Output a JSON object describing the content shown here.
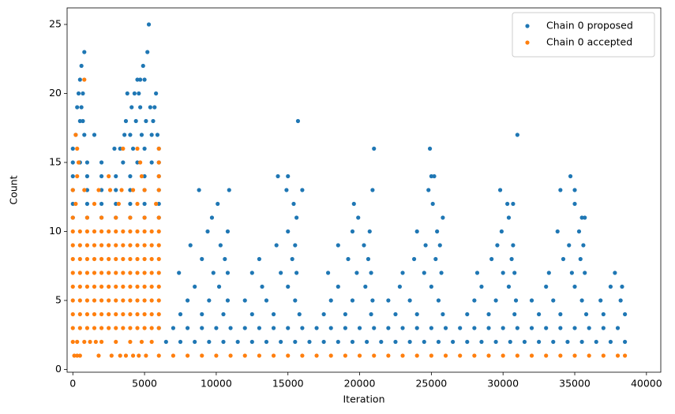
{
  "chart_data": {
    "type": "scatter",
    "xlabel": "Iteration",
    "ylabel": "Count",
    "xlim": [
      -400,
      41000
    ],
    "xticks": [
      0,
      5000,
      10000,
      15000,
      20000,
      25000,
      30000,
      35000,
      40000
    ],
    "ylim": [
      -0.2,
      26.2
    ],
    "yticks": [
      0,
      5,
      10,
      15,
      20,
      25
    ],
    "grid": false,
    "legend": "upper right",
    "series": [
      {
        "name": "Chain 0 proposed",
        "color": "#1f77b4",
        "x": [
          0,
          1000,
          2000,
          3000,
          4000,
          5000,
          6000,
          0,
          1000,
          2000,
          3000,
          4000,
          5000,
          6000,
          0,
          1000,
          2000,
          3000,
          4000,
          5000,
          6000,
          0,
          1000,
          2000,
          3000,
          4000,
          5000,
          6000,
          0,
          500,
          1000,
          2000,
          3500,
          4500,
          5500,
          6000,
          0,
          2900,
          3300,
          4200,
          5000,
          6000,
          200,
          800,
          1500,
          3600,
          4000,
          4800,
          5500,
          5900,
          500,
          700,
          3700,
          4400,
          5100,
          5600,
          300,
          600,
          4100,
          4700,
          5400,
          5700,
          400,
          700,
          3800,
          4300,
          4600,
          5800,
          500,
          4500,
          4700,
          5000,
          600,
          4900,
          800,
          5200,
          5300,
          6500,
          7500,
          8500,
          9500,
          10500,
          11500,
          12500,
          13500,
          14500,
          15500,
          16500,
          17500,
          18500,
          19500,
          20500,
          21500,
          22500,
          23500,
          24500,
          25500,
          26500,
          27500,
          28500,
          29500,
          30500,
          31500,
          32500,
          33500,
          34500,
          35500,
          36500,
          37500,
          38500,
          6000,
          7000,
          8000,
          9000,
          10000,
          11000,
          12000,
          13000,
          14000,
          15000,
          16000,
          17000,
          18000,
          19000,
          20000,
          21000,
          22000,
          23000,
          24000,
          25000,
          26000,
          27000,
          28000,
          29000,
          30000,
          31000,
          32000,
          33000,
          34000,
          35000,
          36000,
          37000,
          38000,
          7500,
          9000,
          10500,
          12500,
          14000,
          15800,
          17500,
          19000,
          20800,
          22500,
          24000,
          25800,
          27500,
          29000,
          30800,
          32500,
          34000,
          35800,
          37000,
          38500,
          8000,
          9500,
          10800,
          12000,
          13500,
          15500,
          18000,
          19500,
          20900,
          22000,
          23500,
          25500,
          28000,
          29500,
          30900,
          32000,
          33500,
          35500,
          36800,
          38200,
          8500,
          10200,
          13200,
          15000,
          18500,
          20400,
          22800,
          25000,
          28500,
          30400,
          33000,
          35000,
          37500,
          38300,
          7400,
          9800,
          10800,
          12500,
          14500,
          15600,
          17800,
          19800,
          20800,
          23000,
          24500,
          25700,
          28200,
          30000,
          30800,
          33200,
          34800,
          35700,
          37800,
          9000,
          10600,
          13000,
          15300,
          19200,
          20600,
          23800,
          25300,
          29200,
          30600,
          34200,
          35400,
          8200,
          10300,
          14200,
          15500,
          18500,
          20300,
          24600,
          25600,
          29600,
          30700,
          34600,
          35600,
          9400,
          10800,
          15000,
          19500,
          20700,
          24000,
          25400,
          29900,
          33800,
          35300,
          9700,
          15600,
          19900,
          25800,
          30400,
          35500,
          35700,
          10100,
          15400,
          19600,
          25100,
          30300,
          30700,
          35000,
          8800,
          10900,
          14900,
          16000,
          20900,
          24800,
          29800,
          34000,
          35000,
          14300,
          15000,
          25000,
          25200,
          34700,
          21000,
          24900,
          31000,
          15700
        ],
        "values": [
          11,
          11,
          11,
          11,
          11,
          11,
          11,
          12,
          12,
          12,
          12,
          12,
          12,
          12,
          13,
          13,
          13,
          13,
          13,
          13,
          13,
          14,
          14,
          14,
          14,
          14,
          14,
          14,
          15,
          15,
          15,
          15,
          15,
          15,
          15,
          15,
          16,
          16,
          16,
          16,
          16,
          16,
          17,
          17,
          17,
          17,
          17,
          17,
          17,
          17,
          18,
          18,
          18,
          18,
          18,
          18,
          19,
          19,
          19,
          19,
          19,
          19,
          20,
          20,
          20,
          20,
          20,
          20,
          21,
          21,
          21,
          21,
          22,
          22,
          23,
          23,
          25,
          2,
          2,
          2,
          2,
          2,
          2,
          2,
          2,
          2,
          2,
          2,
          2,
          2,
          2,
          2,
          2,
          2,
          2,
          2,
          2,
          2,
          2,
          2,
          2,
          2,
          2,
          2,
          2,
          2,
          2,
          2,
          2,
          2,
          3,
          3,
          3,
          3,
          3,
          3,
          3,
          3,
          3,
          3,
          3,
          3,
          3,
          3,
          3,
          3,
          3,
          3,
          3,
          3,
          3,
          3,
          3,
          3,
          3,
          3,
          3,
          3,
          3,
          3,
          3,
          3,
          3,
          4,
          4,
          4,
          4,
          4,
          4,
          4,
          4,
          4,
          4,
          4,
          4,
          4,
          4,
          4,
          4,
          4,
          4,
          4,
          4,
          5,
          5,
          5,
          5,
          5,
          5,
          5,
          5,
          5,
          5,
          5,
          5,
          5,
          5,
          5,
          5,
          5,
          5,
          5,
          5,
          6,
          6,
          6,
          6,
          6,
          6,
          6,
          6,
          6,
          6,
          6,
          6,
          6,
          6,
          7,
          7,
          7,
          7,
          7,
          7,
          7,
          7,
          7,
          7,
          7,
          7,
          7,
          7,
          7,
          7,
          7,
          7,
          7,
          8,
          8,
          8,
          8,
          8,
          8,
          8,
          8,
          8,
          8,
          8,
          8,
          9,
          9,
          9,
          9,
          9,
          9,
          9,
          9,
          9,
          9,
          9,
          9,
          10,
          10,
          10,
          10,
          10,
          10,
          10,
          10,
          10,
          10,
          11,
          11,
          11,
          11,
          11,
          11,
          11,
          12,
          12,
          12,
          12,
          12,
          12,
          12,
          13,
          13,
          13,
          13,
          13,
          13,
          13,
          13,
          13,
          14,
          14,
          14,
          14,
          14,
          16,
          16,
          17,
          18
        ]
      },
      {
        "name": "Chain 0 accepted",
        "color": "#ff7f0e",
        "x": [
          100,
          300,
          500,
          1800,
          2700,
          3300,
          3700,
          4200,
          4600,
          5100,
          6000,
          7000,
          8000,
          9000,
          10000,
          11000,
          12000,
          13000,
          14000,
          15000,
          16000,
          17000,
          18000,
          19000,
          20000,
          21000,
          22000,
          23000,
          24000,
          25000,
          26000,
          27000,
          28000,
          29000,
          30000,
          31000,
          32000,
          33000,
          34000,
          35000,
          36000,
          37000,
          38000,
          38500,
          0,
          300,
          800,
          1200,
          1600,
          2000,
          3000,
          4000,
          4800,
          5500,
          0,
          500,
          1000,
          1500,
          2000,
          2500,
          3000,
          3500,
          4000,
          4500,
          5000,
          5500,
          6000,
          0,
          500,
          1000,
          1500,
          2000,
          2500,
          3000,
          3500,
          4000,
          4500,
          5000,
          5500,
          6000,
          0,
          500,
          1000,
          1500,
          2000,
          2500,
          3000,
          3500,
          4000,
          4500,
          5000,
          5500,
          6000,
          0,
          500,
          1000,
          1500,
          2000,
          2500,
          3000,
          3500,
          4000,
          4500,
          5000,
          5500,
          6000,
          0,
          500,
          1000,
          1500,
          2000,
          2500,
          3000,
          3500,
          4000,
          4500,
          5000,
          5500,
          6000,
          0,
          500,
          1000,
          1500,
          2000,
          2500,
          3000,
          3500,
          4000,
          4500,
          5000,
          5500,
          6000,
          0,
          500,
          1000,
          1500,
          2000,
          2500,
          3000,
          3500,
          4000,
          4500,
          5000,
          5500,
          6000,
          0,
          500,
          1000,
          1500,
          2000,
          2500,
          3000,
          3500,
          4000,
          4500,
          5000,
          5500,
          6000,
          0,
          1000,
          2000,
          3000,
          4000,
          5000,
          6000,
          200,
          1500,
          3200,
          4500,
          5800,
          0,
          800,
          1800,
          2600,
          3400,
          4200,
          5000,
          6000,
          300,
          2500,
          4800,
          6000,
          400,
          4700,
          6000,
          300,
          3500,
          4500,
          6000,
          200,
          800
        ],
        "values": [
          1,
          1,
          1,
          1,
          1,
          1,
          1,
          1,
          1,
          1,
          1,
          1,
          1,
          1,
          1,
          1,
          1,
          1,
          1,
          1,
          1,
          1,
          1,
          1,
          1,
          1,
          1,
          1,
          1,
          1,
          1,
          1,
          1,
          1,
          1,
          1,
          1,
          1,
          1,
          1,
          1,
          1,
          1,
          1,
          2,
          2,
          2,
          2,
          2,
          2,
          2,
          2,
          2,
          2,
          3,
          3,
          3,
          3,
          3,
          3,
          3,
          3,
          3,
          3,
          3,
          3,
          3,
          4,
          4,
          4,
          4,
          4,
          4,
          4,
          4,
          4,
          4,
          4,
          4,
          4,
          5,
          5,
          5,
          5,
          5,
          5,
          5,
          5,
          5,
          5,
          5,
          5,
          5,
          6,
          6,
          6,
          6,
          6,
          6,
          6,
          6,
          6,
          6,
          6,
          6,
          6,
          7,
          7,
          7,
          7,
          7,
          7,
          7,
          7,
          7,
          7,
          7,
          7,
          7,
          8,
          8,
          8,
          8,
          8,
          8,
          8,
          8,
          8,
          8,
          8,
          8,
          8,
          9,
          9,
          9,
          9,
          9,
          9,
          9,
          9,
          9,
          9,
          9,
          9,
          9,
          10,
          10,
          10,
          10,
          10,
          10,
          10,
          10,
          10,
          10,
          10,
          10,
          10,
          11,
          11,
          11,
          11,
          11,
          11,
          11,
          12,
          12,
          12,
          12,
          12,
          13,
          13,
          13,
          13,
          13,
          13,
          13,
          13,
          14,
          14,
          14,
          14,
          15,
          15,
          15,
          16,
          16,
          16,
          16,
          17,
          21
        ]
      }
    ]
  }
}
